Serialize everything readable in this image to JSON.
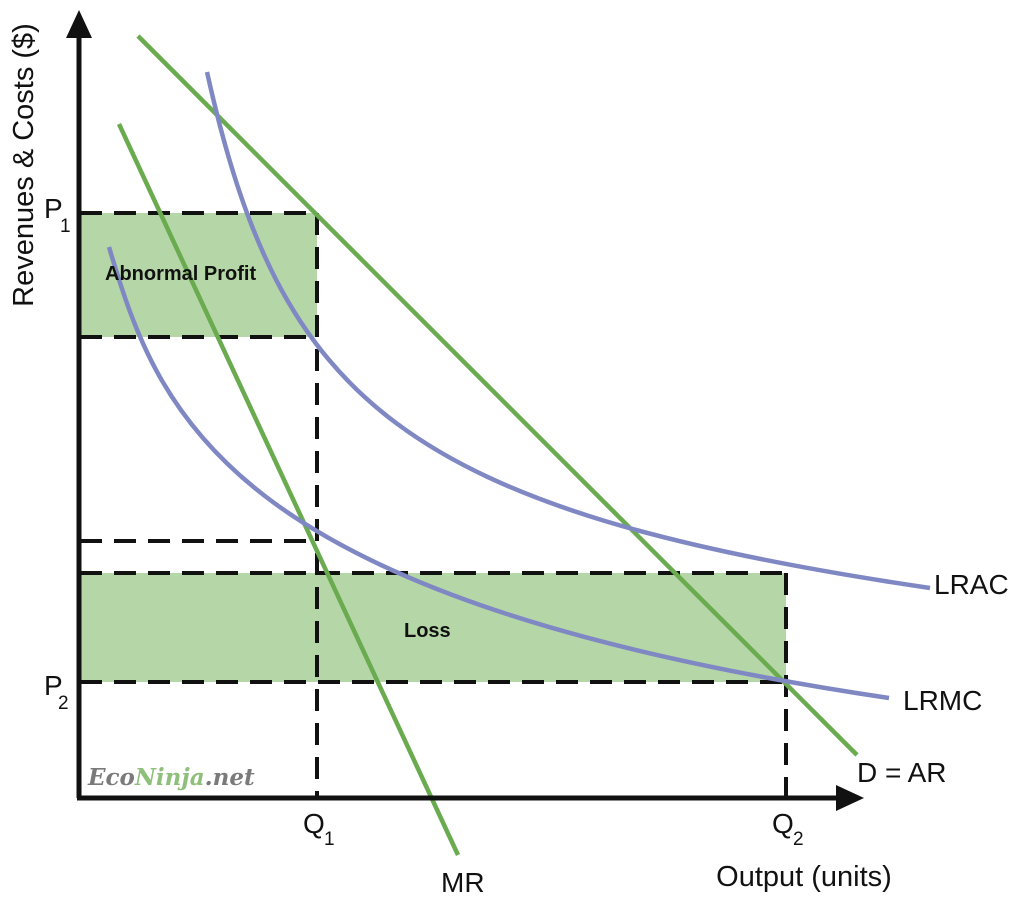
{
  "axes": {
    "y_label": "Revenues & Costs ($)",
    "x_label": "Output (units)"
  },
  "price_labels": {
    "p1_main": "P",
    "p1_sub": "1",
    "p2_main": "P",
    "p2_sub": "2"
  },
  "quantity_labels": {
    "q1_main": "Q",
    "q1_sub": "1",
    "q2_main": "Q",
    "q2_sub": "2"
  },
  "curves": {
    "lrac": "LRAC",
    "lrmc": "LRMC",
    "demand": "D = AR",
    "mr": "MR"
  },
  "regions": {
    "profit": "Abnormal Profit",
    "loss": "Loss"
  },
  "watermark": {
    "part1": "Eco",
    "part2": "Ninja",
    "part3": ".net"
  },
  "colors": {
    "revenue_curves": "#6aab4f",
    "cost_curves": "#8088c4",
    "shaded_area": "#b5d6a7",
    "axis": "#111111",
    "guide_lines": "#111111"
  }
}
